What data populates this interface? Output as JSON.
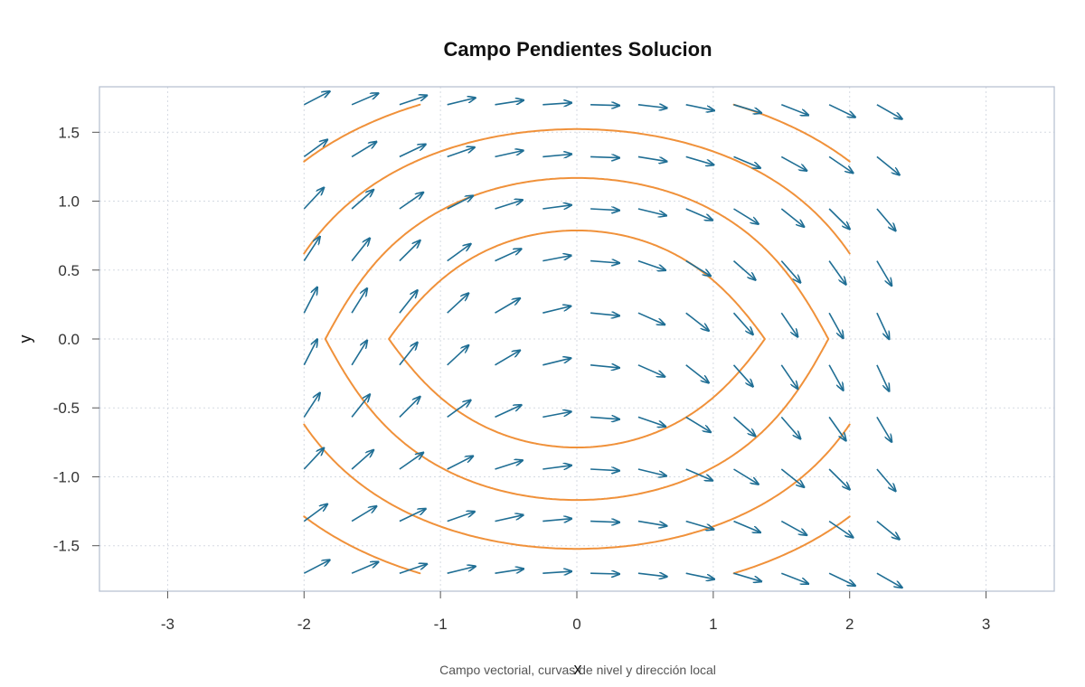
{
  "chart_data": {
    "type": "vector_field",
    "title": "Campo Pendientes Solucion",
    "xlabel": "x",
    "ylabel": "y",
    "caption": "Campo vectorial, curvas de nivel y dirección local",
    "xlim": [
      -3.5,
      3.5
    ],
    "ylim": [
      -1.83,
      1.83
    ],
    "x_ticks": [
      -3,
      -2,
      -1,
      0,
      1,
      2,
      3
    ],
    "x_tick_labels": [
      "-3",
      "-2",
      "-1",
      "0",
      "1",
      "2",
      "3"
    ],
    "y_ticks": [
      -1.5,
      -1.0,
      -0.5,
      0.0,
      0.5,
      1.0,
      1.5
    ],
    "y_tick_labels": [
      "-1.5",
      "-1.0",
      "-0.5",
      "0.0",
      "0.5",
      "1.0",
      "1.5"
    ],
    "grid": true,
    "field": {
      "equation": "dy/dx = -x/(1+y^2)",
      "x_range": [
        -2,
        2.2
      ],
      "y_range": [
        -1.7,
        1.7
      ],
      "nx": 13,
      "ny": 10
    },
    "level_curves": {
      "function": "x^2/2 + y + y^3/3 = c, mirrored in y",
      "x_range": [
        -2,
        2
      ],
      "y_range": [
        -1.7,
        1.7
      ],
      "levels": [
        0.95,
        1.7,
        2.7,
        4.0,
        5.5
      ],
      "color": "#f0913a"
    },
    "colors": {
      "arrow": "#1f6e94",
      "curve": "#f0913a",
      "frame": "#b9c3d3",
      "grid": "#d5dae2"
    }
  }
}
